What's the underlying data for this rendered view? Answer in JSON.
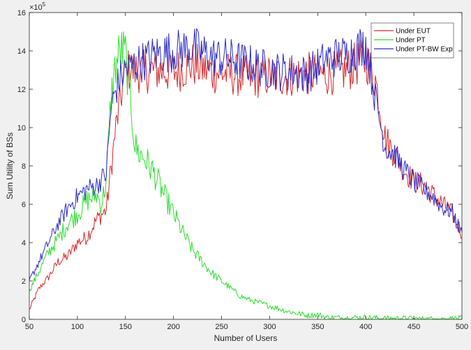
{
  "chart_data": {
    "type": "line",
    "title": "",
    "xlabel": "Number of Users",
    "ylabel": "Sum Utility of BSs",
    "xlim": [
      50,
      500
    ],
    "ylim": [
      0,
      1600000
    ],
    "y_exponent_label": "×10",
    "y_exponent": "5",
    "x_ticks": [
      50,
      100,
      150,
      200,
      250,
      300,
      350,
      400,
      450,
      500
    ],
    "y_ticks": [
      0,
      2,
      4,
      6,
      8,
      10,
      12,
      14,
      16
    ],
    "y_tick_scale": 100000,
    "grid": false,
    "legend_position": "top-right",
    "series": [
      {
        "name": "Under EUT",
        "color": "#d62728",
        "x": [
          50,
          60,
          70,
          80,
          90,
          100,
          110,
          120,
          130,
          140,
          150,
          160,
          170,
          180,
          200,
          220,
          240,
          260,
          280,
          300,
          320,
          340,
          360,
          380,
          400,
          410,
          420,
          430,
          440,
          450,
          460,
          470,
          480,
          490,
          500
        ],
        "y": [
          50000,
          160000,
          220000,
          300000,
          330000,
          400000,
          430000,
          520000,
          570000,
          1000000,
          1300000,
          1300000,
          1290000,
          1300000,
          1290000,
          1330000,
          1290000,
          1280000,
          1260000,
          1270000,
          1270000,
          1280000,
          1280000,
          1300000,
          1360000,
          1250000,
          950000,
          860000,
          780000,
          720000,
          700000,
          650000,
          600000,
          550000,
          450000
        ]
      },
      {
        "name": "Under PT",
        "color": "#2ddc2d",
        "x": [
          50,
          60,
          70,
          80,
          90,
          100,
          110,
          120,
          125,
          130,
          135,
          140,
          145,
          150,
          155,
          160,
          165,
          170,
          175,
          180,
          190,
          200,
          210,
          220,
          230,
          240,
          250,
          260,
          270,
          280,
          300,
          320,
          340,
          350,
          360,
          380,
          400,
          420,
          440,
          460,
          480,
          500
        ],
        "y": [
          150000,
          250000,
          350000,
          420000,
          500000,
          550000,
          620000,
          650000,
          600000,
          720000,
          1150000,
          1330000,
          1400000,
          1380000,
          1170000,
          900000,
          860000,
          840000,
          800000,
          760000,
          650000,
          550000,
          450000,
          360000,
          300000,
          240000,
          200000,
          160000,
          120000,
          100000,
          70000,
          40000,
          20000,
          25000,
          10000,
          8000,
          10000,
          5000,
          5000,
          2000,
          2000,
          5000
        ]
      },
      {
        "name": "Under PT-BW Exp",
        "color": "#2b2bc8",
        "x": [
          50,
          60,
          70,
          80,
          90,
          100,
          110,
          120,
          130,
          135,
          140,
          145,
          150,
          160,
          170,
          180,
          200,
          220,
          240,
          260,
          280,
          300,
          320,
          340,
          360,
          380,
          400,
          410,
          420,
          430,
          440,
          450,
          460,
          470,
          480,
          490,
          500
        ],
        "y": [
          200000,
          300000,
          400000,
          500000,
          580000,
          640000,
          680000,
          700000,
          760000,
          1100000,
          1200000,
          1260000,
          1300000,
          1330000,
          1350000,
          1380000,
          1400000,
          1420000,
          1370000,
          1360000,
          1330000,
          1300000,
          1290000,
          1280000,
          1360000,
          1380000,
          1440000,
          1150000,
          900000,
          860000,
          780000,
          720000,
          680000,
          640000,
          580000,
          560000,
          440000
        ]
      }
    ]
  }
}
